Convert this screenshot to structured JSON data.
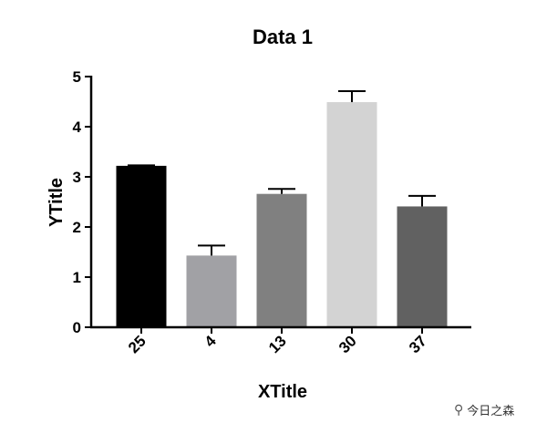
{
  "chart_data": {
    "type": "bar",
    "title": "Data 1",
    "xlabel": "XTitle",
    "ylabel": "YTitle",
    "categories": [
      "25",
      "4",
      "13",
      "30",
      "37"
    ],
    "values": [
      3.22,
      1.43,
      2.66,
      4.49,
      2.41
    ],
    "errors": [
      0.01,
      0.2,
      0.1,
      0.22,
      0.21
    ],
    "colors": [
      "#000000",
      "#a1a1a5",
      "#808080",
      "#d3d3d3",
      "#616161"
    ],
    "ylim": [
      0,
      5
    ],
    "yticks": [
      "0",
      "1",
      "2",
      "3",
      "4",
      "5"
    ],
    "grid": false
  },
  "watermark": {
    "icon": "wechat-icon",
    "text": "今日之森"
  }
}
